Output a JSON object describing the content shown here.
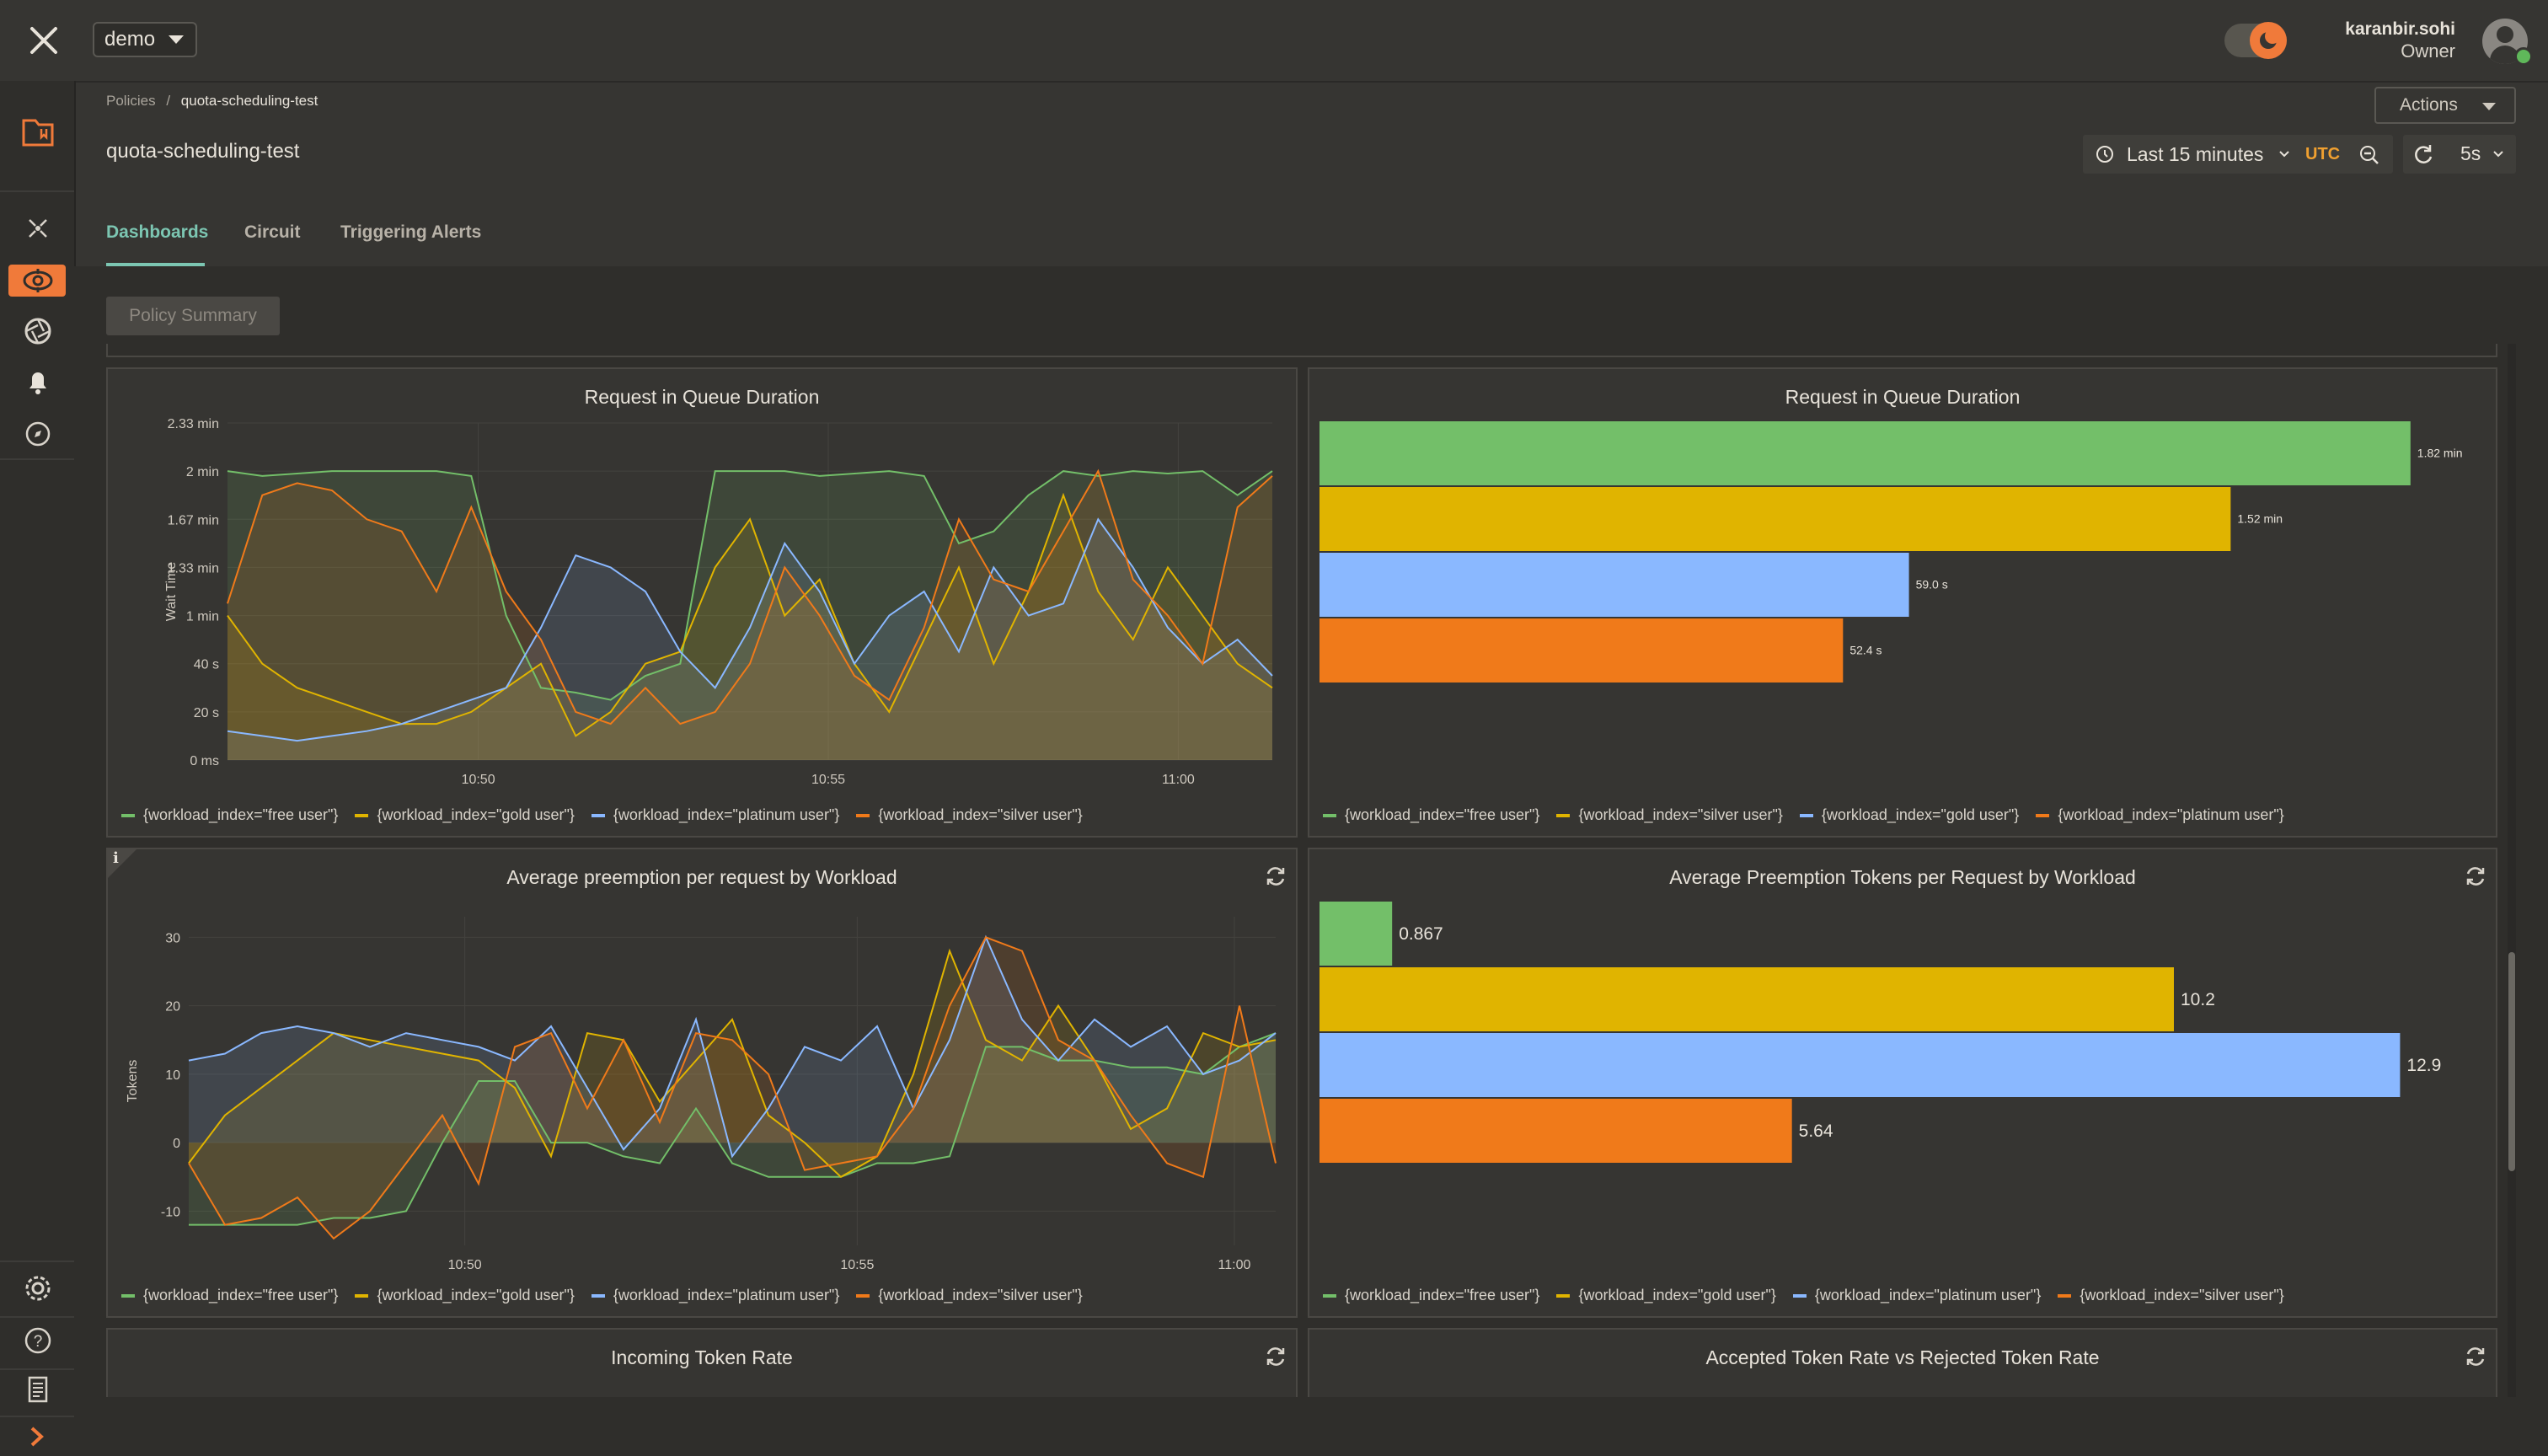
{
  "topbar": {
    "org_select": "demo",
    "user_name": "karanbir.sohi",
    "user_role": "Owner"
  },
  "breadcrumb": {
    "parent": "Policies",
    "separator": "/",
    "current": "quota-scheduling-test"
  },
  "page": {
    "title": "quota-scheduling-test",
    "actions_label": "Actions"
  },
  "time_controls": {
    "range": "Last 15 minutes",
    "timezone": "UTC",
    "refresh": "5s"
  },
  "tabs": [
    {
      "label": "Dashboards",
      "active": true
    },
    {
      "label": "Circuit",
      "active": false
    },
    {
      "label": "Triggering Alerts",
      "active": false
    }
  ],
  "policy_summary_label": "Policy Summary",
  "colors": {
    "green": "#73bf69",
    "yellow": "#e0b400",
    "blue": "#8ab8ff",
    "orange": "#f07a1a",
    "accent": "#7cc6b2",
    "brand": "#f07a3a"
  },
  "panels": {
    "p1": {
      "title": "Request in Queue Duration",
      "legend": [
        "{workload_index=\"free user\"}",
        "{workload_index=\"gold user\"}",
        "{workload_index=\"platinum user\"}",
        "{workload_index=\"silver user\"}"
      ]
    },
    "p2": {
      "title": "Request in Queue Duration",
      "legend": [
        "{workload_index=\"free user\"}",
        "{workload_index=\"silver user\"}",
        "{workload_index=\"gold user\"}",
        "{workload_index=\"platinum user\"}"
      ]
    },
    "p3": {
      "title": "Average preemption per request by Workload",
      "info": "i",
      "legend": [
        "{workload_index=\"free user\"}",
        "{workload_index=\"gold user\"}",
        "{workload_index=\"platinum user\"}",
        "{workload_index=\"silver user\"}"
      ]
    },
    "p4": {
      "title": "Average Preemption Tokens per Request by Workload",
      "legend": [
        "{workload_index=\"free user\"}",
        "{workload_index=\"gold user\"}",
        "{workload_index=\"platinum user\"}",
        "{workload_index=\"silver user\"}"
      ]
    },
    "p5": {
      "title": "Incoming Token Rate"
    },
    "p6": {
      "title": "Accepted Token Rate vs Rejected Token Rate"
    }
  },
  "chart_data": [
    {
      "type": "line",
      "title": "Request in Queue Duration",
      "ylabel": "Wait Time",
      "yticks": [
        "0 ms",
        "20 s",
        "40 s",
        "1 min",
        "1.33 min",
        "1.67 min",
        "2 min",
        "2.33 min"
      ],
      "ylim": [
        0,
        140
      ],
      "xticks": [
        "10:50",
        "10:55",
        "11:00"
      ],
      "x": [
        0,
        1,
        2,
        3,
        4,
        5,
        6,
        7,
        8,
        9,
        10,
        11,
        12,
        13,
        14,
        15,
        16,
        17,
        18,
        19,
        20,
        21,
        22,
        23,
        24,
        25,
        26,
        27,
        28,
        29,
        30
      ],
      "series": [
        {
          "name": "{workload_index=\"free user\"}",
          "color": "#73bf69",
          "values": [
            120,
            118,
            119,
            120,
            120,
            120,
            120,
            118,
            60,
            30,
            28,
            25,
            35,
            40,
            120,
            120,
            120,
            118,
            119,
            120,
            118,
            90,
            95,
            110,
            120,
            118,
            120,
            119,
            120,
            110,
            120
          ]
        },
        {
          "name": "{workload_index=\"gold user\"}",
          "color": "#e0b400",
          "values": [
            60,
            40,
            30,
            25,
            20,
            15,
            15,
            20,
            30,
            40,
            10,
            20,
            40,
            45,
            80,
            100,
            60,
            75,
            40,
            20,
            50,
            80,
            40,
            70,
            110,
            70,
            50,
            80,
            60,
            40,
            30
          ]
        },
        {
          "name": "{workload_index=\"platinum user\"}",
          "color": "#8ab8ff",
          "values": [
            12,
            10,
            8,
            10,
            12,
            15,
            20,
            25,
            30,
            55,
            85,
            80,
            70,
            45,
            30,
            55,
            90,
            70,
            40,
            60,
            70,
            45,
            80,
            60,
            65,
            100,
            80,
            55,
            40,
            50,
            35
          ]
        },
        {
          "name": "{workload_index=\"silver user\"}",
          "color": "#f07a1a",
          "values": [
            65,
            110,
            115,
            112,
            100,
            95,
            70,
            105,
            70,
            50,
            20,
            15,
            30,
            15,
            20,
            40,
            80,
            60,
            35,
            25,
            55,
            100,
            75,
            70,
            95,
            120,
            75,
            60,
            40,
            105,
            118
          ]
        }
      ]
    },
    {
      "type": "bar",
      "orientation": "horizontal",
      "title": "Request in Queue Duration",
      "categories": [
        "{workload_index=\"free user\"}",
        "{workload_index=\"silver user\"}",
        "{workload_index=\"gold user\"}",
        "{workload_index=\"platinum user\"}"
      ],
      "values": [
        109.2,
        91.2,
        59.0,
        52.4
      ],
      "value_labels": [
        "1.82 min",
        "1.52 min",
        "59.0 s",
        "52.4 s"
      ],
      "colors": [
        "#73bf69",
        "#e0b400",
        "#8ab8ff",
        "#f07a1a"
      ],
      "xlim": [
        0,
        112
      ]
    },
    {
      "type": "line",
      "title": "Average preemption per request by Workload",
      "ylabel": "Tokens",
      "yticks": [
        "-10",
        "0",
        "10",
        "20",
        "30"
      ],
      "ylim": [
        -15,
        33
      ],
      "xticks": [
        "10:50",
        "10:55",
        "11:00"
      ],
      "x": [
        0,
        1,
        2,
        3,
        4,
        5,
        6,
        7,
        8,
        9,
        10,
        11,
        12,
        13,
        14,
        15,
        16,
        17,
        18,
        19,
        20,
        21,
        22,
        23,
        24,
        25,
        26,
        27,
        28,
        29,
        30
      ],
      "series": [
        {
          "name": "{workload_index=\"free user\"}",
          "color": "#73bf69",
          "values": [
            -12,
            -12,
            -12,
            -12,
            -11,
            -11,
            -10,
            0,
            9,
            9,
            0,
            0,
            -2,
            -3,
            5,
            -3,
            -5,
            -5,
            -5,
            -3,
            -3,
            -2,
            14,
            14,
            12,
            12,
            11,
            11,
            10,
            14,
            16
          ]
        },
        {
          "name": "{workload_index=\"gold user\"}",
          "color": "#e0b400",
          "values": [
            -3,
            4,
            8,
            12,
            16,
            15,
            14,
            13,
            12,
            8,
            -2,
            16,
            15,
            6,
            12,
            18,
            4,
            0,
            -5,
            -2,
            10,
            28,
            15,
            12,
            20,
            12,
            2,
            5,
            16,
            14,
            15
          ]
        },
        {
          "name": "{workload_index=\"platinum user\"}",
          "color": "#8ab8ff",
          "values": [
            12,
            13,
            16,
            17,
            16,
            14,
            16,
            15,
            14,
            12,
            17,
            8,
            -1,
            5,
            18,
            -2,
            5,
            14,
            12,
            17,
            5,
            15,
            30,
            18,
            12,
            18,
            14,
            17,
            10,
            12,
            16
          ]
        },
        {
          "name": "{workload_index=\"silver user\"}",
          "color": "#f07a1a",
          "values": [
            -3,
            -12,
            -11,
            -8,
            -14,
            -10,
            -3,
            4,
            -6,
            14,
            16,
            5,
            15,
            3,
            16,
            15,
            10,
            -4,
            -3,
            -2,
            5,
            20,
            30,
            28,
            15,
            12,
            4,
            -3,
            -5,
            20,
            -3
          ]
        }
      ]
    },
    {
      "type": "bar",
      "orientation": "horizontal",
      "title": "Average Preemption Tokens per Request by Workload",
      "categories": [
        "{workload_index=\"free user\"}",
        "{workload_index=\"gold user\"}",
        "{workload_index=\"platinum user\"}",
        "{workload_index=\"silver user\"}"
      ],
      "values": [
        0.867,
        10.2,
        12.9,
        5.64
      ],
      "value_labels": [
        "0.867",
        "10.2",
        "12.9",
        "5.64"
      ],
      "colors": [
        "#73bf69",
        "#e0b400",
        "#8ab8ff",
        "#f07a1a"
      ],
      "xlim": [
        0,
        13.6
      ]
    }
  ]
}
